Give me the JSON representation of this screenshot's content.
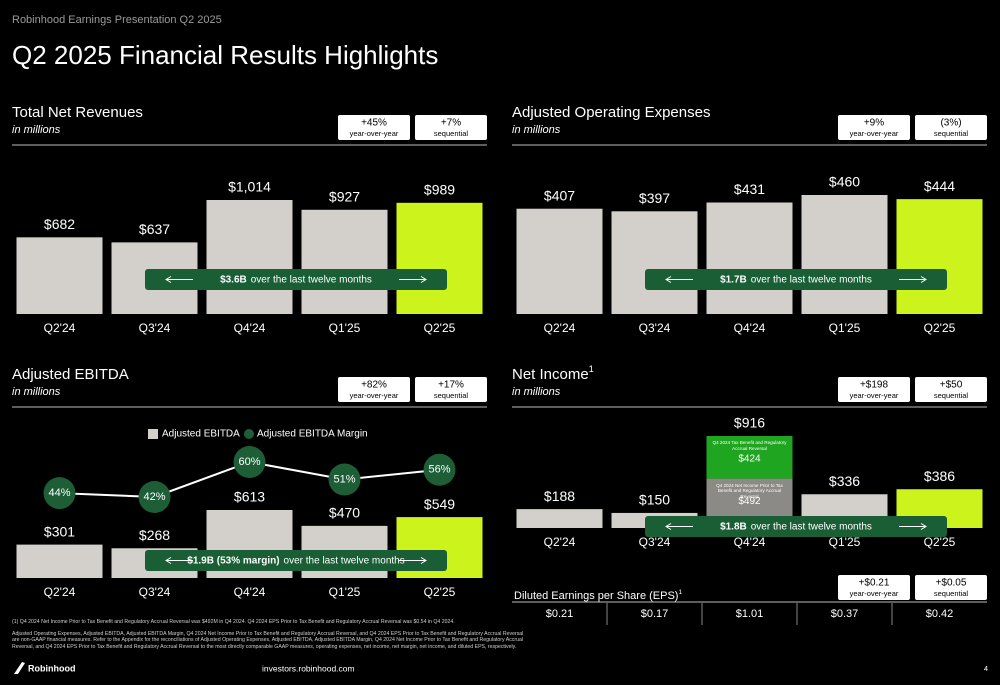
{
  "header": {
    "eyebrow": "Robinhood Earnings Presentation Q2 2025",
    "title": "Q2 2025 Financial Results Highlights"
  },
  "chart_data": [
    {
      "type": "bar",
      "title": "Total Net Revenues",
      "subtitle": "in millions",
      "badges": [
        {
          "value": "+45%",
          "label": "year-over-year"
        },
        {
          "value": "+7%",
          "label": "sequential"
        }
      ],
      "categories": [
        "Q2'24",
        "Q3'24",
        "Q4'24",
        "Q1'25",
        "Q2'25"
      ],
      "values": [
        682,
        637,
        1014,
        927,
        989
      ],
      "value_labels": [
        "$682",
        "$637",
        "$1,014",
        "$927",
        "$989"
      ],
      "colors": [
        "#d3d0cb",
        "#d3d0cb",
        "#d3d0cb",
        "#d3d0cb",
        "#ccf41c"
      ],
      "annotation": {
        "highlight": "$3.6B",
        "text": "over the last twelve months"
      }
    },
    {
      "type": "bar",
      "title": "Adjusted Operating Expenses",
      "subtitle": "in millions",
      "badges": [
        {
          "value": "+9%",
          "label": "year-over-year"
        },
        {
          "value": "(3%)",
          "label": "sequential"
        }
      ],
      "categories": [
        "Q2'24",
        "Q3'24",
        "Q4'24",
        "Q1'25",
        "Q2'25"
      ],
      "values": [
        407,
        397,
        431,
        460,
        444
      ],
      "value_labels": [
        "$407",
        "$397",
        "$431",
        "$460",
        "$444"
      ],
      "colors": [
        "#d3d0cb",
        "#d3d0cb",
        "#d3d0cb",
        "#d3d0cb",
        "#ccf41c"
      ],
      "annotation": {
        "highlight": "$1.7B",
        "text": "over the last twelve months"
      }
    },
    {
      "type": "combo",
      "title": "Adjusted EBITDA",
      "subtitle": "in millions",
      "badges": [
        {
          "value": "+82%",
          "label": "year-over-year"
        },
        {
          "value": "+17%",
          "label": "sequential"
        }
      ],
      "categories": [
        "Q2'24",
        "Q3'24",
        "Q4'24",
        "Q1'25",
        "Q2'25"
      ],
      "series": [
        {
          "name": "Adjusted EBITDA",
          "color": "#d3d0cb",
          "colors": [
            "#d3d0cb",
            "#d3d0cb",
            "#d3d0cb",
            "#d3d0cb",
            "#ccf41c"
          ],
          "values": [
            301,
            268,
            613,
            470,
            549
          ],
          "value_labels": [
            "$301",
            "$268",
            "$613",
            "$470",
            "$549"
          ]
        },
        {
          "name": "Adjusted EBITDA Margin",
          "color": "#1d5e36",
          "values": [
            44,
            42,
            60,
            51,
            56
          ],
          "value_labels": [
            "44%",
            "42%",
            "60%",
            "51%",
            "56%"
          ]
        }
      ],
      "legend": true,
      "annotation": {
        "highlight": "$1.9B (53% margin)",
        "text": "over the last twelve months"
      }
    },
    {
      "type": "bar",
      "title": "Net Income",
      "title_note": "1",
      "subtitle": "in millions",
      "badges": [
        {
          "value": "+$198",
          "label": "year-over-year"
        },
        {
          "value": "+$50",
          "label": "sequential"
        }
      ],
      "categories": [
        "Q2'24",
        "Q3'24",
        "Q4'24",
        "Q1'25",
        "Q2'25"
      ],
      "values": [
        188,
        150,
        916,
        336,
        386
      ],
      "value_labels": [
        "$188",
        "$150",
        "$916",
        "$336",
        "$386"
      ],
      "colors": [
        "#d3d0cb",
        "#d3d0cb",
        "#d3d0cb",
        "#d3d0cb",
        "#ccf41c"
      ],
      "stack": {
        "index": 2,
        "segments": [
          {
            "name": "Q4 2024 Net Income Prior to Tax Benefit and Regulatory Accrual Reversal",
            "value": 492,
            "value_label": "$492",
            "color": "#8b8a86"
          },
          {
            "name": "Q4 2024 Tax Benefit and Regulatory Accrual Reversal",
            "value": 424,
            "value_label": "$424",
            "color": "#1fa51f"
          }
        ]
      },
      "annotation": {
        "highlight": "$1.8B",
        "text": "over the last twelve months"
      }
    }
  ],
  "eps": {
    "title": "Diluted Earnings per Share (EPS)",
    "title_note": "1",
    "badges": [
      {
        "value": "+$0.21",
        "label": "year-over-year"
      },
      {
        "value": "+$0.05",
        "label": "sequential"
      }
    ],
    "values": [
      "$0.21",
      "$0.17",
      "$1.01",
      "$0.37",
      "$0.42"
    ]
  },
  "footnotes": [
    "(1) Q4 2024 Net Income Prior to Tax Benefit and Regulatory Accrual Reversal was $492M in Q4 2024. Q4 2024 EPS Prior to Tax Benefit and Regulatory Accrual Reversal was $0.54 in Q4 2024.",
    "Adjusted Operating Expenses, Adjusted EBITDA, Adjusted EBITDA Margin, Q4 2024 Net Income Prior to Tax Benefit and Regulatory Accrual Reversal, and Q4 2024 EPS Prior to Tax Benefit and Regulatory Accrual Reversal are non-GAAP financial measures. Refer to the Appendix for the reconciliations of Adjusted Operating Expenses, Adjusted EBITDA, Adjusted EBITDA Margin, Q4 2024 Net Income Prior to Tax Benefit and Regulatory Accrual Reversal, and Q4 2024 EPS Prior to Tax Benefit and Regulatory Accrual Reversal to the most directly comparable GAAP measures, operating expenses, net income, net margin, net income, and diluted EPS, respectively."
  ],
  "footer": {
    "brand": "Robinhood",
    "url": "investors.robinhood.com",
    "page": "4"
  }
}
